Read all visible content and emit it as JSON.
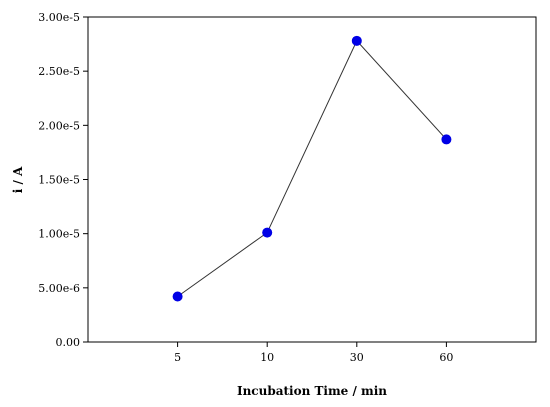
{
  "chart_data": {
    "type": "line",
    "categories": [
      "5",
      "10",
      "30",
      "60"
    ],
    "series": [
      {
        "values": [
          4.2e-06,
          1.01e-05,
          2.78e-05,
          1.87e-05
        ]
      }
    ],
    "xlabel": "Incubation Time / min",
    "ylabel": "i / A",
    "ylim": [
      0,
      3e-05
    ],
    "yticks": [
      0,
      5e-06,
      1e-05,
      1.5e-05,
      2e-05,
      2.5e-05,
      3e-05
    ],
    "ytick_labels": [
      "0.00",
      "5.00e-6",
      "1.00e-5",
      "1.50e-5",
      "2.00e-5",
      "2.50e-5",
      "3.00e-5"
    ],
    "grid": false,
    "colors": {
      "marker": "#0000e6",
      "line": "#333333",
      "axis": "#000000"
    }
  }
}
